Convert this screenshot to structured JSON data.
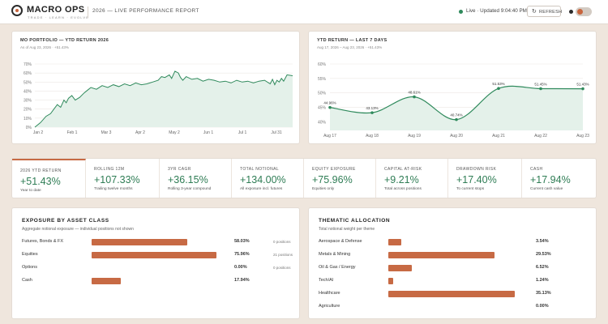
{
  "header": {
    "logo_name": "MACRO OPS",
    "logo_tagline": "TRADE · LEARN · EVOLVE",
    "report_title": "2026 — LIVE PERFORMANCE REPORT",
    "status_text": "Live · Updated 9:04:40 PM",
    "refresh_label": "REFRESH"
  },
  "colors": {
    "accent": "#c76a44",
    "positive": "#2f7d55",
    "line": "#2f8a5c",
    "area": "#e4f1ea",
    "background": "#efe6dd"
  },
  "ytd_chart": {
    "title": "MO PORTFOLIO — YTD RETURN 2026",
    "subtitle": "As of Aug 23, 2026 · +51.43%"
  },
  "week_chart": {
    "title": "YTD RETURN — LAST 7 DAYS",
    "subtitle": "Aug 17, 2026 – Aug 23, 2026 · +51.43%"
  },
  "chart_data": [
    {
      "type": "area",
      "title": "MO PORTFOLIO — YTD RETURN 2026",
      "x_ticks": [
        "Jan 2",
        "Feb 1",
        "Mar 3",
        "Apr 2",
        "May 2",
        "Jun 1",
        "Jul 1",
        "Jul 31"
      ],
      "y_ticks": [
        "0%",
        "10%",
        "20%",
        "30%",
        "40%",
        "50%",
        "60%",
        "70%"
      ],
      "ylim": [
        0,
        70
      ],
      "grid": true,
      "x": [
        0,
        5,
        10,
        14,
        17,
        20,
        23,
        26,
        28,
        30,
        33,
        36,
        40,
        44,
        47,
        50,
        55,
        60,
        65,
        70,
        75,
        80,
        85,
        90,
        95,
        100,
        105,
        110,
        113,
        116,
        120,
        122,
        125,
        128,
        130,
        132,
        135,
        140,
        145,
        150,
        155,
        160,
        165,
        170,
        175,
        180,
        185,
        190,
        195,
        200,
        205,
        210,
        212,
        214,
        216,
        218,
        220,
        222,
        225,
        230
      ],
      "values": [
        0,
        5,
        12,
        15,
        20,
        25,
        22,
        30,
        27,
        32,
        35,
        30,
        33,
        38,
        41,
        44,
        42,
        46,
        44,
        47,
        45,
        48,
        46,
        49,
        47,
        48,
        50,
        52,
        56,
        55,
        58,
        54,
        62,
        60,
        55,
        52,
        56,
        53,
        54,
        51,
        53,
        52,
        50,
        51,
        49,
        52,
        50,
        51,
        49,
        51,
        52,
        48,
        53,
        47,
        52,
        50,
        54,
        51,
        58,
        57
      ]
    },
    {
      "type": "area",
      "title": "YTD RETURN — LAST 7 DAYS",
      "categories": [
        "Aug 17",
        "Aug 18",
        "Aug 19",
        "Aug 20",
        "Aug 21",
        "Aug 22",
        "Aug 23"
      ],
      "values": [
        44.96,
        43.13,
        48.61,
        40.74,
        51.53,
        51.45,
        51.43
      ],
      "point_labels": [
        "44.96%",
        "43.13%",
        "48.61%",
        "40.74%",
        "51.53%",
        "51.45%",
        "51.43%"
      ],
      "y_ticks": [
        "40%",
        "45%",
        "50%",
        "55%",
        "60%"
      ],
      "ylim": [
        37,
        60
      ],
      "grid": true
    }
  ],
  "stats": [
    {
      "label": "2026 YTD RETURN",
      "value": "+51.43%",
      "sub": "Year to date"
    },
    {
      "label": "ROLLING 12M",
      "value": "+107.33%",
      "sub": "Trailing twelve months"
    },
    {
      "label": "3YR CAGR",
      "value": "+36.15%",
      "sub": "Rolling 3-year compound"
    },
    {
      "label": "TOTAL NOTIONAL",
      "value": "+134.00%",
      "sub": "All exposure incl. futures"
    },
    {
      "label": "EQUITY EXPOSURE",
      "value": "+75.96%",
      "sub": "Equities only"
    },
    {
      "label": "CAPITAL AT-RISK",
      "value": "+9.21%",
      "sub": "Total across positions"
    },
    {
      "label": "DRAWDOWN RISK",
      "value": "+17.40%",
      "sub": "To current stops"
    },
    {
      "label": "CASH",
      "value": "+17.94%",
      "sub": "Current cash value"
    }
  ],
  "exposure": {
    "title": "EXPOSURE BY ASSET CLASS",
    "subtitle": "Aggregate notional exposure — individual positions not shown",
    "rows": [
      {
        "name": "Futures, Bonds & FX",
        "pct": "58.03%",
        "positions": "0 positions",
        "fill": 0.6915
      },
      {
        "name": "Equities",
        "pct": "75.96%",
        "positions": "21 positions",
        "fill": 0.9052
      },
      {
        "name": "Options",
        "pct": "0.00%",
        "positions": "0 positions",
        "fill": 0
      },
      {
        "name": "Cash",
        "pct": "17.94%",
        "positions": "",
        "fill": 0.2138
      }
    ]
  },
  "thematic": {
    "title": "THEMATIC ALLOCATION",
    "subtitle": "Total notional weight per theme",
    "rows": [
      {
        "name": "Aerospace & Defense",
        "pct": "3.54%",
        "fill": 0.0895
      },
      {
        "name": "Metals & Mining",
        "pct": "29.53%",
        "fill": 0.7467
      },
      {
        "name": "Oil & Gas / Energy",
        "pct": "6.52%",
        "fill": 0.1649
      },
      {
        "name": "Tech/AI",
        "pct": "1.24%",
        "fill": 0.0314
      },
      {
        "name": "Healthcare",
        "pct": "35.13%",
        "fill": 0.8883
      },
      {
        "name": "Agriculture",
        "pct": "0.00%",
        "fill": 0
      }
    ]
  }
}
